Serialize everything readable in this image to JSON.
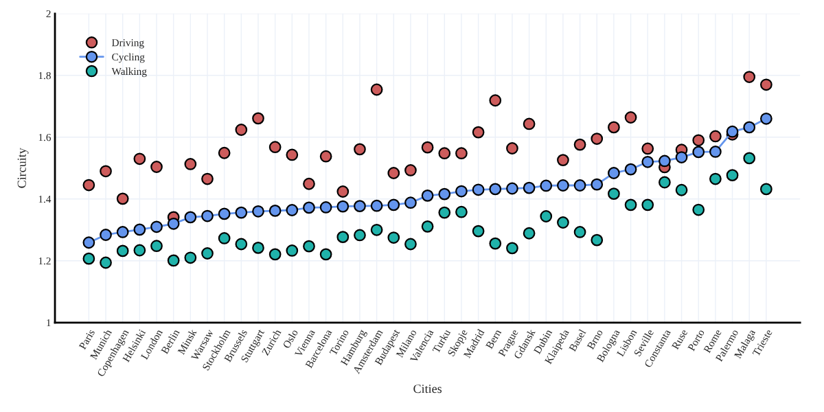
{
  "chart_data": {
    "type": "scatter",
    "xlabel": "Cities",
    "ylabel": "Circuity",
    "categories": [
      "Paris",
      "Munich",
      "Copenhagen",
      "Helsinki",
      "London",
      "Berlin",
      "Minsk",
      "Warsaw",
      "Stockholm",
      "Brussels",
      "Stuttgart",
      "Zurich",
      "Oslo",
      "Vienna",
      "Barcelona",
      "Torino",
      "Hamburg",
      "Amsterdam",
      "Budapest",
      "Milano",
      "Valencia",
      "Turku",
      "Skopje",
      "Madrid",
      "Bern",
      "Prague",
      "Gdansk",
      "Dubin",
      "Klaipeda",
      "Basel",
      "Brno",
      "Bologna",
      "Lisbon",
      "Seville",
      "Constanta",
      "Ruse",
      "Porto",
      "Rome",
      "Palermo",
      "Malaga",
      "Trieste"
    ],
    "series": [
      {
        "name": "Driving",
        "color": "#cd5c5c",
        "values": [
          1.445,
          1.49,
          1.401,
          1.53,
          1.504,
          1.341,
          1.513,
          1.465,
          1.549,
          1.624,
          1.661,
          1.568,
          1.543,
          1.449,
          1.538,
          1.424,
          1.561,
          1.754,
          1.484,
          1.493,
          1.567,
          1.548,
          1.548,
          1.616,
          1.719,
          1.564,
          1.643,
          null,
          1.526,
          1.576,
          1.595,
          1.632,
          1.664,
          1.563,
          1.503,
          1.559,
          1.59,
          1.603,
          1.609,
          1.795,
          1.77
        ]
      },
      {
        "name": "Cycling",
        "type": "line",
        "color": "#6495ed",
        "values": [
          1.259,
          1.284,
          1.293,
          1.301,
          1.31,
          1.32,
          1.341,
          1.345,
          1.352,
          1.356,
          1.36,
          1.362,
          1.364,
          1.372,
          1.373,
          1.376,
          1.377,
          1.378,
          1.381,
          1.388,
          1.411,
          1.416,
          1.425,
          1.43,
          1.432,
          1.434,
          1.436,
          1.443,
          1.444,
          1.444,
          1.447,
          1.484,
          1.496,
          1.52,
          1.523,
          1.535,
          1.552,
          1.553,
          1.618,
          1.632,
          1.66
        ]
      },
      {
        "name": "Walking",
        "color": "#20b2aa",
        "values": [
          1.207,
          1.194,
          1.232,
          1.234,
          1.248,
          1.201,
          1.21,
          1.224,
          1.273,
          1.254,
          1.242,
          1.221,
          1.233,
          1.247,
          1.221,
          1.277,
          1.283,
          1.3,
          1.275,
          1.254,
          1.311,
          1.356,
          1.358,
          1.296,
          1.256,
          1.241,
          1.289,
          1.344,
          1.324,
          1.293,
          1.267,
          1.417,
          1.381,
          1.381,
          1.454,
          1.429,
          1.365,
          1.465,
          1.477,
          1.532,
          1.432
        ]
      }
    ],
    "ylim": [
      1,
      2
    ],
    "yticks": [
      1,
      1.2,
      1.4,
      1.6,
      1.8,
      2
    ],
    "grid": true,
    "legend": "top left",
    "marker": "circle"
  }
}
